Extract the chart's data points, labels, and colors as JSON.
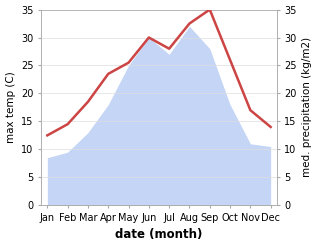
{
  "months": [
    "Jan",
    "Feb",
    "Mar",
    "Apr",
    "May",
    "Jun",
    "Jul",
    "Aug",
    "Sep",
    "Oct",
    "Nov",
    "Dec"
  ],
  "temperature": [
    12.5,
    14.5,
    18.5,
    23.5,
    25.5,
    30.0,
    28.0,
    32.5,
    35.0,
    26.0,
    17.0,
    14.0
  ],
  "precipitation": [
    8.5,
    9.5,
    13.0,
    18.0,
    25.0,
    30.0,
    27.0,
    32.0,
    28.0,
    18.0,
    11.0,
    10.5
  ],
  "temp_color": "#cc4444",
  "precip_fill_color": "#c5d5f5",
  "background_color": "#ffffff",
  "ylabel_left": "max temp (C)",
  "ylabel_right": "med. precipitation (kg/m2)",
  "xlabel": "date (month)",
  "ylim_left": [
    0,
    35
  ],
  "ylim_right": [
    0,
    35
  ],
  "yticks": [
    0,
    5,
    10,
    15,
    20,
    25,
    30,
    35
  ],
  "label_fontsize": 7.5,
  "tick_fontsize": 7.0,
  "xlabel_fontsize": 8.5
}
